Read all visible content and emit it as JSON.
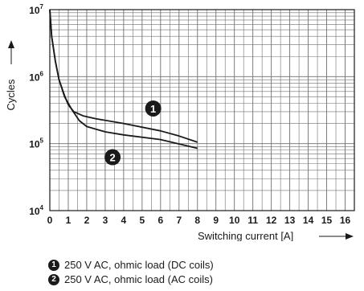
{
  "chart_data": {
    "type": "line",
    "xlabel": "Switching current [A]",
    "ylabel": "Cycles",
    "x_ticks": [
      0,
      1,
      2,
      3,
      4,
      5,
      6,
      7,
      8,
      9,
      10,
      11,
      12,
      13,
      14,
      15,
      16
    ],
    "y_ticks": [
      {
        "value": 10000,
        "base": "10",
        "exp": "4"
      },
      {
        "value": 100000,
        "base": "10",
        "exp": "5"
      },
      {
        "value": 1000000,
        "base": "10",
        "exp": "6"
      },
      {
        "value": 10000000,
        "base": "10",
        "exp": "7"
      }
    ],
    "xlim": [
      0,
      16.5
    ],
    "ylim": [
      10000,
      10000000
    ],
    "yscale": "log",
    "grid": true,
    "series": [
      {
        "marker": "1",
        "name": "250 V AC, ohmic load (DC coils)",
        "points": [
          [
            0,
            10000000
          ],
          [
            0.1,
            4000000
          ],
          [
            0.3,
            1700000
          ],
          [
            0.5,
            900000
          ],
          [
            0.8,
            520000
          ],
          [
            1.0,
            380000
          ],
          [
            1.3,
            300000
          ],
          [
            1.8,
            260000
          ],
          [
            2.5,
            235000
          ],
          [
            4,
            200000
          ],
          [
            6,
            155000
          ],
          [
            7,
            130000
          ],
          [
            8,
            105000
          ]
        ]
      },
      {
        "marker": "2",
        "name": "250 V AC, ohmic load (AC coils)",
        "points": [
          [
            0,
            10000000
          ],
          [
            0.1,
            4000000
          ],
          [
            0.3,
            1700000
          ],
          [
            0.5,
            900000
          ],
          [
            0.8,
            500000
          ],
          [
            1.2,
            320000
          ],
          [
            1.6,
            220000
          ],
          [
            2,
            180000
          ],
          [
            3,
            150000
          ],
          [
            4,
            135000
          ],
          [
            6,
            115000
          ],
          [
            8,
            85000
          ]
        ]
      }
    ]
  },
  "legend": [
    {
      "marker": "1",
      "label": "250 V AC, ohmic load (DC coils)"
    },
    {
      "marker": "2",
      "label": "250 V AC, ohmic load (AC coils)"
    }
  ],
  "colors": {
    "line": "#1a1a1a",
    "grid": "#6f6f6f",
    "background": "#ffffff"
  }
}
